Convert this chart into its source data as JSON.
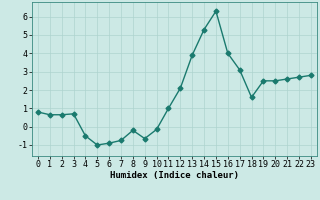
{
  "x": [
    0,
    1,
    2,
    3,
    4,
    5,
    6,
    7,
    8,
    9,
    10,
    11,
    12,
    13,
    14,
    15,
    16,
    17,
    18,
    19,
    20,
    21,
    22,
    23
  ],
  "y": [
    0.8,
    0.65,
    0.65,
    0.7,
    -0.5,
    -1.0,
    -0.9,
    -0.75,
    -0.2,
    -0.65,
    -0.15,
    1.0,
    2.1,
    3.9,
    5.3,
    6.3,
    4.0,
    3.1,
    1.6,
    2.5,
    2.5,
    2.6,
    2.7,
    2.8
  ],
  "line_color": "#1a7a6e",
  "marker": "D",
  "marker_size": 2.5,
  "bg_color": "#cce9e5",
  "grid_color": "#aed4cf",
  "xlabel": "Humidex (Indice chaleur)",
  "xlim": [
    -0.5,
    23.5
  ],
  "ylim": [
    -1.6,
    6.8
  ],
  "yticks": [
    -1,
    0,
    1,
    2,
    3,
    4,
    5,
    6
  ],
  "xticks": [
    0,
    1,
    2,
    3,
    4,
    5,
    6,
    7,
    8,
    9,
    10,
    11,
    12,
    13,
    14,
    15,
    16,
    17,
    18,
    19,
    20,
    21,
    22,
    23
  ],
  "xlabel_fontsize": 6.5,
  "tick_fontsize": 6.0,
  "line_width": 1.0
}
